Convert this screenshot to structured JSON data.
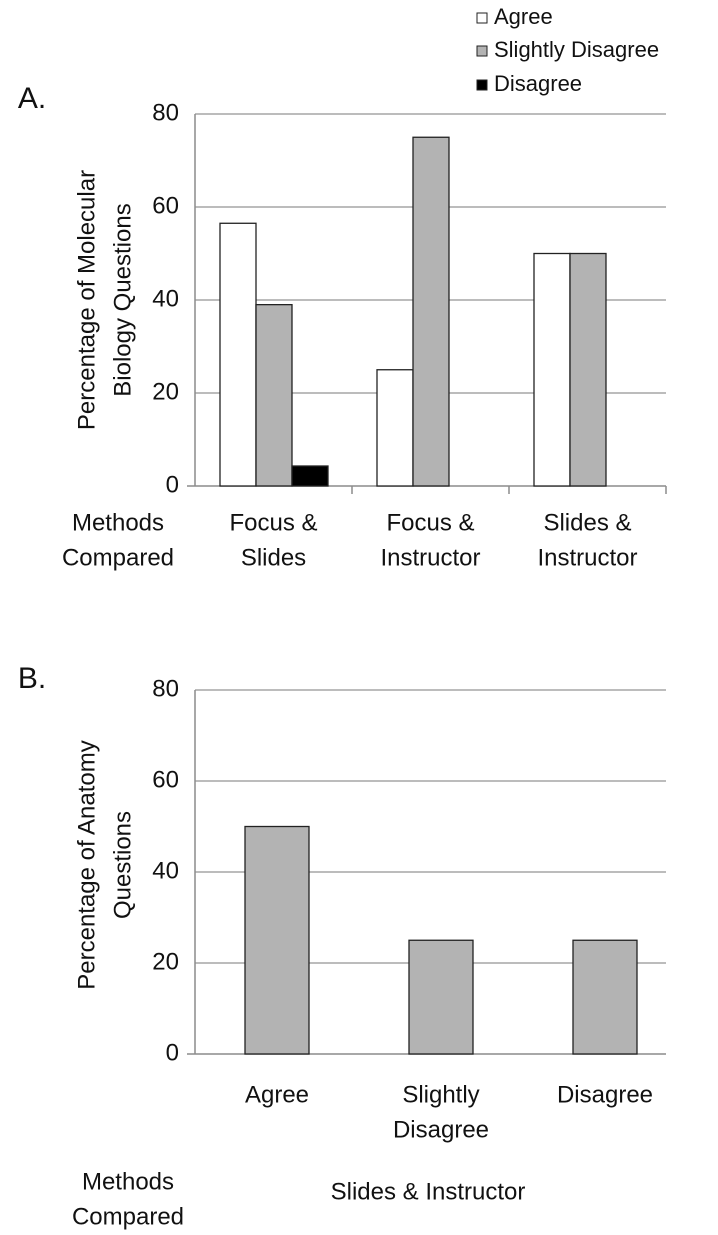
{
  "colors": {
    "agree": "#ffffff",
    "slightly_disagree": "#b3b3b3",
    "disagree": "#000000",
    "grid": "#a6a6a6",
    "axis": "#8c8c8c",
    "bar_stroke": "#222222"
  },
  "chart_data": [
    {
      "type": "bar",
      "panel_label": "A.",
      "ylabel": [
        "Percentage of Molecular",
        "Biology Questions"
      ],
      "xlabel": [
        "Methods",
        "Compared"
      ],
      "ylim": [
        0,
        80
      ],
      "yticks": [
        0,
        20,
        40,
        60,
        80
      ],
      "grid": true,
      "legend_position": "top-right",
      "categories": [
        [
          "Focus &",
          "Slides"
        ],
        [
          "Focus &",
          "Instructor"
        ],
        [
          "Slides &",
          "Instructor"
        ]
      ],
      "series": [
        {
          "name": "Agree",
          "color_key": "agree",
          "values": [
            56.5,
            25,
            50
          ]
        },
        {
          "name": "Slightly Disagree",
          "color_key": "slightly_disagree",
          "values": [
            39,
            75,
            50
          ]
        },
        {
          "name": "Disagree",
          "color_key": "disagree",
          "values": [
            4.3,
            0,
            0
          ]
        }
      ]
    },
    {
      "type": "bar",
      "panel_label": "B.",
      "ylabel": [
        "Percentage of Anatomy",
        "Questions"
      ],
      "xlabel": [
        "Methods",
        "Compared"
      ],
      "group_label": "Slides & Instructor",
      "ylim": [
        0,
        80
      ],
      "yticks": [
        0,
        20,
        40,
        60,
        80
      ],
      "grid": true,
      "categories": [
        [
          "Agree"
        ],
        [
          "Slightly",
          "Disagree"
        ],
        [
          "Disagree"
        ]
      ],
      "series": [
        {
          "name": "",
          "color_key": "slightly_disagree",
          "values": [
            50,
            25,
            25
          ]
        }
      ]
    }
  ]
}
